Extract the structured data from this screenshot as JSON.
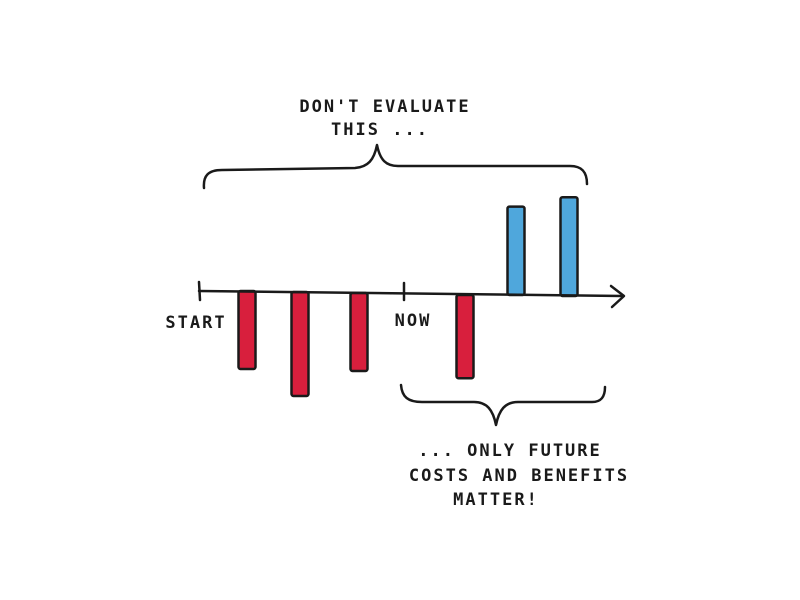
{
  "top_note": {
    "line1": "DON'T EVALUATE",
    "line2": "THIS ..."
  },
  "bottom_note": {
    "line1": "... ONLY FUTURE",
    "line2": "COSTS AND BENEFITS",
    "line3": "MATTER!"
  },
  "timeline": {
    "start_label": "START",
    "now_label": "NOW"
  },
  "colors": {
    "cost": "#d81f3d",
    "benefit": "#4fa7dc",
    "ink": "#1a1a1a"
  },
  "bars": [
    {
      "kind": "cost",
      "magnitude": 3
    },
    {
      "kind": "cost",
      "magnitude": 4
    },
    {
      "kind": "cost",
      "magnitude": 3
    },
    {
      "kind": "cost",
      "magnitude": 3.2
    },
    {
      "kind": "benefit",
      "magnitude": 3.4
    },
    {
      "kind": "benefit",
      "magnitude": 3.8
    }
  ]
}
